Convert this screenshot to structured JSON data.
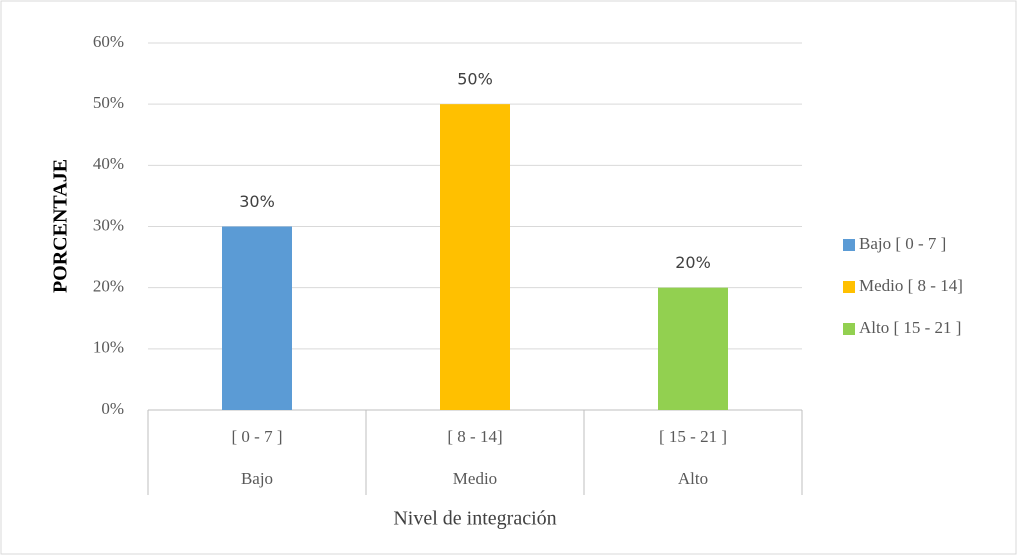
{
  "chart_data": {
    "type": "bar",
    "y_label": "PORCENTAJE",
    "x_label": "Nivel de integración",
    "categories": [
      "[ 0  - 7  ]",
      "[ 8 - 14]",
      "[ 15 - 21 ]"
    ],
    "groups": [
      "Bajo",
      "Medio",
      "Alto"
    ],
    "values": [
      30,
      50,
      20
    ],
    "value_labels": [
      "30%",
      "50%",
      "20%"
    ],
    "colors": [
      "#5b9bd5",
      "#ffc000",
      "#92d050"
    ],
    "legend": [
      "Bajo [ 0  - 7  ]",
      "Medio [ 8 - 14]",
      "Alto [ 15 - 21 ]"
    ],
    "legend_position": "right",
    "ylim": [
      0,
      60
    ],
    "yticks": [
      {
        "value": 0,
        "label": "0%"
      },
      {
        "value": 10,
        "label": "10%"
      },
      {
        "value": 20,
        "label": "20%"
      },
      {
        "value": 30,
        "label": "30%"
      },
      {
        "value": 40,
        "label": "40%"
      },
      {
        "value": 50,
        "label": "50%"
      },
      {
        "value": 60,
        "label": "60%"
      }
    ],
    "grid": true
  }
}
